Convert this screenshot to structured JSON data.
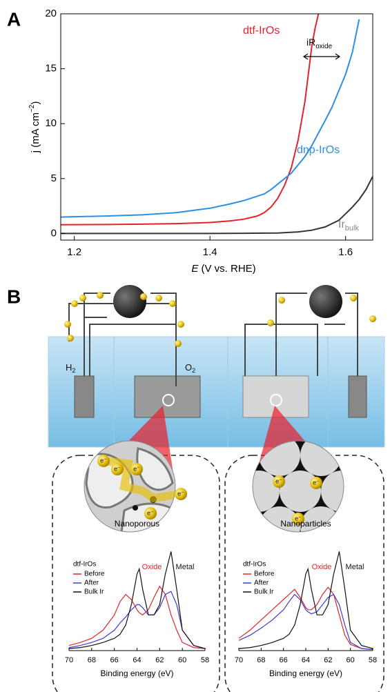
{
  "chart_data": [
    {
      "type": "line",
      "panel": "A",
      "xlabel": {
        "italic": "E",
        "text": " (V vs. RHE)"
      },
      "ylabel": {
        "text": "j (mA cm",
        "sup": "−2",
        "end": ")"
      },
      "xlim": [
        1.18,
        1.64
      ],
      "xticks": [
        1.2,
        1.4,
        1.6
      ],
      "ylim": [
        -0.6,
        20
      ],
      "yticks": [
        0,
        5,
        10,
        15,
        20
      ],
      "series": [
        {
          "name": "dtf-IrOs",
          "color": "#e8202a",
          "label_color": "#e8202a",
          "x": [
            1.18,
            1.25,
            1.3,
            1.35,
            1.4,
            1.43,
            1.45,
            1.47,
            1.48,
            1.49,
            1.5,
            1.51,
            1.52,
            1.53,
            1.54,
            1.545,
            1.55,
            1.555,
            1.56
          ],
          "values": [
            0.8,
            0.82,
            0.85,
            0.9,
            1.0,
            1.15,
            1.3,
            1.6,
            1.9,
            2.4,
            3.2,
            4.4,
            6.0,
            8.5,
            12.0,
            14.5,
            17.0,
            18.7,
            20.0
          ]
        },
        {
          "name": "dnp-IrOs",
          "color": "#2b8fe6",
          "label_color": "#2b8fe6",
          "x": [
            1.18,
            1.25,
            1.3,
            1.35,
            1.4,
            1.43,
            1.45,
            1.47,
            1.48,
            1.49,
            1.5,
            1.51,
            1.52,
            1.54,
            1.55,
            1.57,
            1.58,
            1.6,
            1.61,
            1.62
          ],
          "values": [
            1.5,
            1.6,
            1.7,
            1.9,
            2.3,
            2.7,
            3.0,
            3.4,
            3.6,
            4.0,
            4.5,
            5.0,
            5.5,
            7.0,
            8.0,
            10.3,
            11.5,
            14.5,
            16.5,
            19.5
          ]
        },
        {
          "name": "Ir",
          "name_sub": "bulk",
          "color": "#333333",
          "label_color": "#888888",
          "x": [
            1.18,
            1.3,
            1.4,
            1.45,
            1.5,
            1.53,
            1.55,
            1.57,
            1.59,
            1.6,
            1.61,
            1.62,
            1.63,
            1.64
          ],
          "values": [
            0,
            0,
            0,
            0.02,
            0.05,
            0.15,
            0.3,
            0.6,
            1.2,
            1.8,
            2.4,
            3.1,
            4.0,
            5.2
          ]
        }
      ],
      "annotation": {
        "text": "iR",
        "sub": "oxide"
      }
    },
    {
      "type": "line",
      "panel": "B",
      "title": "Nanoporous",
      "xlabel": "Binding energy (eV)",
      "xlim": [
        70,
        58
      ],
      "xticks": [
        70,
        68,
        66,
        64,
        62,
        60,
        58
      ],
      "ylim": [
        0,
        1
      ],
      "legend_title": "dtf-IrOs",
      "x": [
        70,
        69,
        68,
        67,
        66,
        65.5,
        65,
        64.5,
        64,
        63.8,
        63.5,
        63,
        62.5,
        62,
        61.5,
        61,
        60.5,
        60,
        59,
        58
      ],
      "series": [
        {
          "name": "Before",
          "color": "#e8202a",
          "values": [
            0.05,
            0.08,
            0.12,
            0.2,
            0.35,
            0.48,
            0.55,
            0.5,
            0.4,
            0.37,
            0.35,
            0.4,
            0.52,
            0.63,
            0.55,
            0.35,
            0.2,
            0.08,
            0.03,
            0.02
          ]
        },
        {
          "name": "After",
          "color": "#3b3bd6",
          "values": [
            0.03,
            0.05,
            0.08,
            0.12,
            0.2,
            0.27,
            0.33,
            0.4,
            0.45,
            0.45,
            0.42,
            0.35,
            0.35,
            0.42,
            0.55,
            0.58,
            0.45,
            0.2,
            0.05,
            0.02
          ]
        },
        {
          "name": "Bulk Ir",
          "color": "#111111",
          "values": [
            0.02,
            0.03,
            0.05,
            0.08,
            0.12,
            0.16,
            0.25,
            0.45,
            0.75,
            0.8,
            0.6,
            0.35,
            0.35,
            0.45,
            0.75,
            0.97,
            0.6,
            0.2,
            0.05,
            0.02
          ]
        }
      ],
      "annotations": [
        {
          "text": "Oxide",
          "color": "#e8202a"
        },
        {
          "text": "Metal",
          "color": "#111111"
        }
      ]
    },
    {
      "type": "line",
      "title": "Nanoparticles",
      "xlabel": "Binding energy (eV)",
      "xlim": [
        70,
        58
      ],
      "xticks": [
        70,
        68,
        66,
        64,
        62,
        60,
        58
      ],
      "ylim": [
        0,
        1
      ],
      "legend_title": "dtf-IrOs",
      "x": [
        70,
        69,
        68,
        67,
        66,
        65.5,
        65,
        64.5,
        64,
        63.8,
        63.5,
        63,
        62.5,
        62,
        61.5,
        61,
        60.5,
        60,
        59,
        58
      ],
      "series": [
        {
          "name": "Before",
          "color": "#e8202a",
          "values": [
            0.12,
            0.2,
            0.3,
            0.4,
            0.5,
            0.55,
            0.6,
            0.52,
            0.42,
            0.4,
            0.4,
            0.45,
            0.55,
            0.62,
            0.55,
            0.35,
            0.15,
            0.06,
            0.02,
            0.01
          ]
        },
        {
          "name": "After",
          "color": "#3b3bd6",
          "values": [
            0.1,
            0.15,
            0.22,
            0.3,
            0.4,
            0.48,
            0.55,
            0.5,
            0.4,
            0.38,
            0.36,
            0.38,
            0.45,
            0.52,
            0.55,
            0.45,
            0.25,
            0.08,
            0.02,
            0.01
          ]
        },
        {
          "name": "Bulk Ir",
          "color": "#111111",
          "values": [
            0.02,
            0.03,
            0.05,
            0.08,
            0.12,
            0.16,
            0.25,
            0.45,
            0.75,
            0.8,
            0.6,
            0.35,
            0.35,
            0.45,
            0.75,
            0.97,
            0.6,
            0.2,
            0.05,
            0.02
          ]
        }
      ],
      "annotations": [
        {
          "text": "Oxide",
          "color": "#e8202a"
        },
        {
          "text": "Metal",
          "color": "#111111"
        }
      ]
    }
  ],
  "illustration": {
    "h2": [
      "H",
      "2"
    ],
    "o2": [
      "O",
      "2"
    ],
    "electron": "e⁻"
  }
}
